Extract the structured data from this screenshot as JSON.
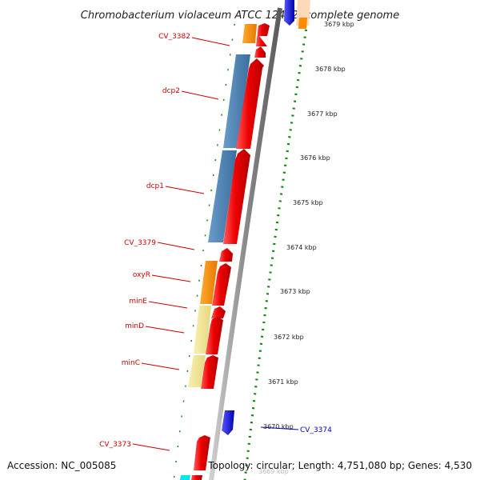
{
  "title": "Chromobacterium violaceum ATCC 12472, complete genome",
  "footer": {
    "accession": "Accession: NC_005085",
    "summary": "Topology: circular; Length: 4,751,080 bp; Genes: 4,530"
  },
  "ticks": [
    {
      "label": "3679 kbp",
      "kbp": 3679
    },
    {
      "label": "3678 kbp",
      "kbp": 3678
    },
    {
      "label": "3677 kbp",
      "kbp": 3677
    },
    {
      "label": "3676 kbp",
      "kbp": 3676
    },
    {
      "label": "3675 kbp",
      "kbp": 3675
    },
    {
      "label": "3674 kbp",
      "kbp": 3674
    },
    {
      "label": "3673 kbp",
      "kbp": 3673
    },
    {
      "label": "3672 kbp",
      "kbp": 3672
    },
    {
      "label": "3671 kbp",
      "kbp": 3671
    },
    {
      "label": "3670 kbp",
      "kbp": 3670
    },
    {
      "label": "3669 kbp",
      "kbp": 3669
    }
  ],
  "gene_labels": [
    {
      "text": "CV_3382",
      "color": "#cc0000",
      "side": "left"
    },
    {
      "text": "dcp2",
      "color": "#cc0000",
      "side": "left"
    },
    {
      "text": "dcp1",
      "color": "#cc0000",
      "side": "left"
    },
    {
      "text": "CV_3379",
      "color": "#cc0000",
      "side": "left"
    },
    {
      "text": "oxyR",
      "color": "#cc0000",
      "side": "left"
    },
    {
      "text": "minE",
      "color": "#cc0000",
      "side": "left"
    },
    {
      "text": "minD",
      "color": "#cc0000",
      "side": "left"
    },
    {
      "text": "minC",
      "color": "#cc0000",
      "side": "left"
    },
    {
      "text": "CV_3373",
      "color": "#cc0000",
      "side": "left"
    },
    {
      "text": "CV_3374",
      "color": "#0000aa",
      "side": "right"
    }
  ],
  "colors": {
    "forward_gene": "#e00000",
    "reverse_gene": "#1010dd",
    "backbone": "#888888",
    "tick_dots": "#118811",
    "cog_orange": "#ff8c00",
    "cog_blue": "#4682b4",
    "cog_khaki": "#f0e68c",
    "cog_peach": "#ffdab9",
    "cog_cyan": "#00ffff"
  }
}
